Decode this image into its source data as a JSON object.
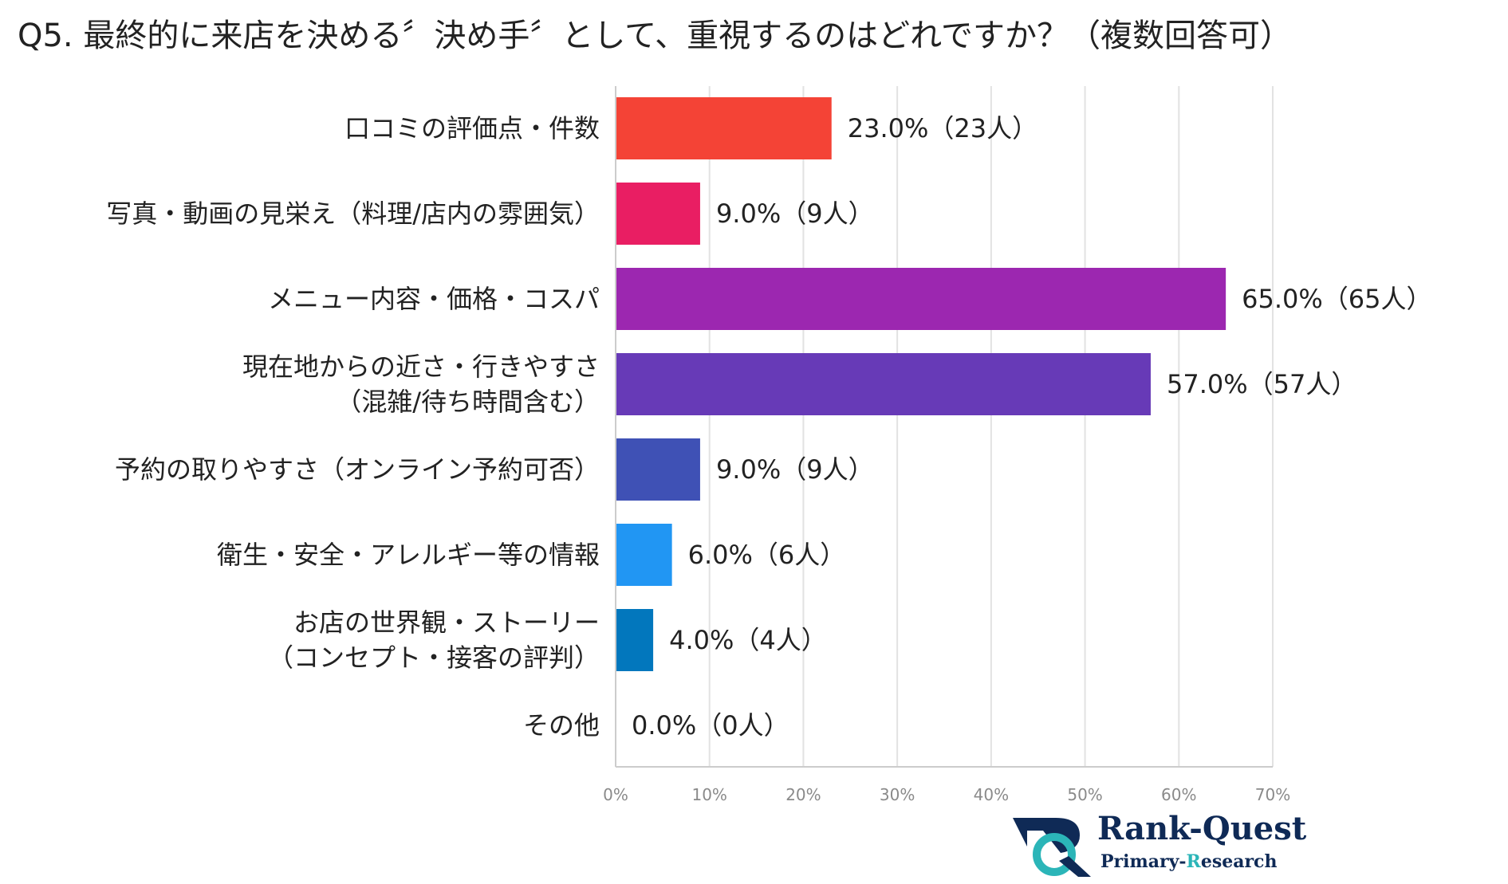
{
  "title": "Q5. 最終的に来店を決める〞決め手〞として、重視するのはどれですか？（複数回答可）",
  "chart_data": {
    "type": "bar",
    "orientation": "horizontal",
    "categories": [
      [
        "口コミの評価点・件数"
      ],
      [
        "写真・動画の見栄え（料理/店内の雰囲気）"
      ],
      [
        "メニュー内容・価格・コスパ"
      ],
      [
        "現在地からの近さ・行きやすさ",
        "（混雑/待ち時間含む）"
      ],
      [
        "予約の取りやすさ（オンライン予約可否）"
      ],
      [
        "衛生・安全・アレルギー等の情報"
      ],
      [
        "お店の世界観・ストーリー",
        "（コンセプト・接客の評判）"
      ],
      [
        "その他"
      ]
    ],
    "values": [
      23.0,
      9.0,
      65.0,
      57.0,
      9.0,
      6.0,
      4.0,
      0.0
    ],
    "value_labels": [
      "23.0%（23人）",
      "9.0%（9人）",
      "65.0%（65人）",
      "57.0%（57人）",
      "9.0%（9人）",
      "6.0%（6人）",
      "4.0%（4人）",
      "0.0%（0人）"
    ],
    "colors": [
      "#f44336",
      "#e91e63",
      "#9c27b0",
      "#673ab7",
      "#3f51b5",
      "#2196f3",
      "#0277bd",
      "#0277bd"
    ],
    "xlim": [
      0,
      70
    ],
    "xticks": [
      0,
      10,
      20,
      30,
      40,
      50,
      60,
      70
    ],
    "xtick_labels": [
      "0%",
      "10%",
      "20%",
      "30%",
      "40%",
      "50%",
      "60%",
      "70%"
    ],
    "grid": true,
    "title": "Q5. 最終的に来店を決める〞決め手〞として、重視するのはどれですか？（複数回答可）",
    "xlabel": "",
    "ylabel": ""
  },
  "logo": {
    "name": "Rank-Quest",
    "sub_prefix": "Primary-",
    "sub_accent": "R",
    "sub_suffix": "esearch",
    "colors": {
      "navy": "#0f2a56",
      "teal": "#2bb5b8"
    }
  }
}
